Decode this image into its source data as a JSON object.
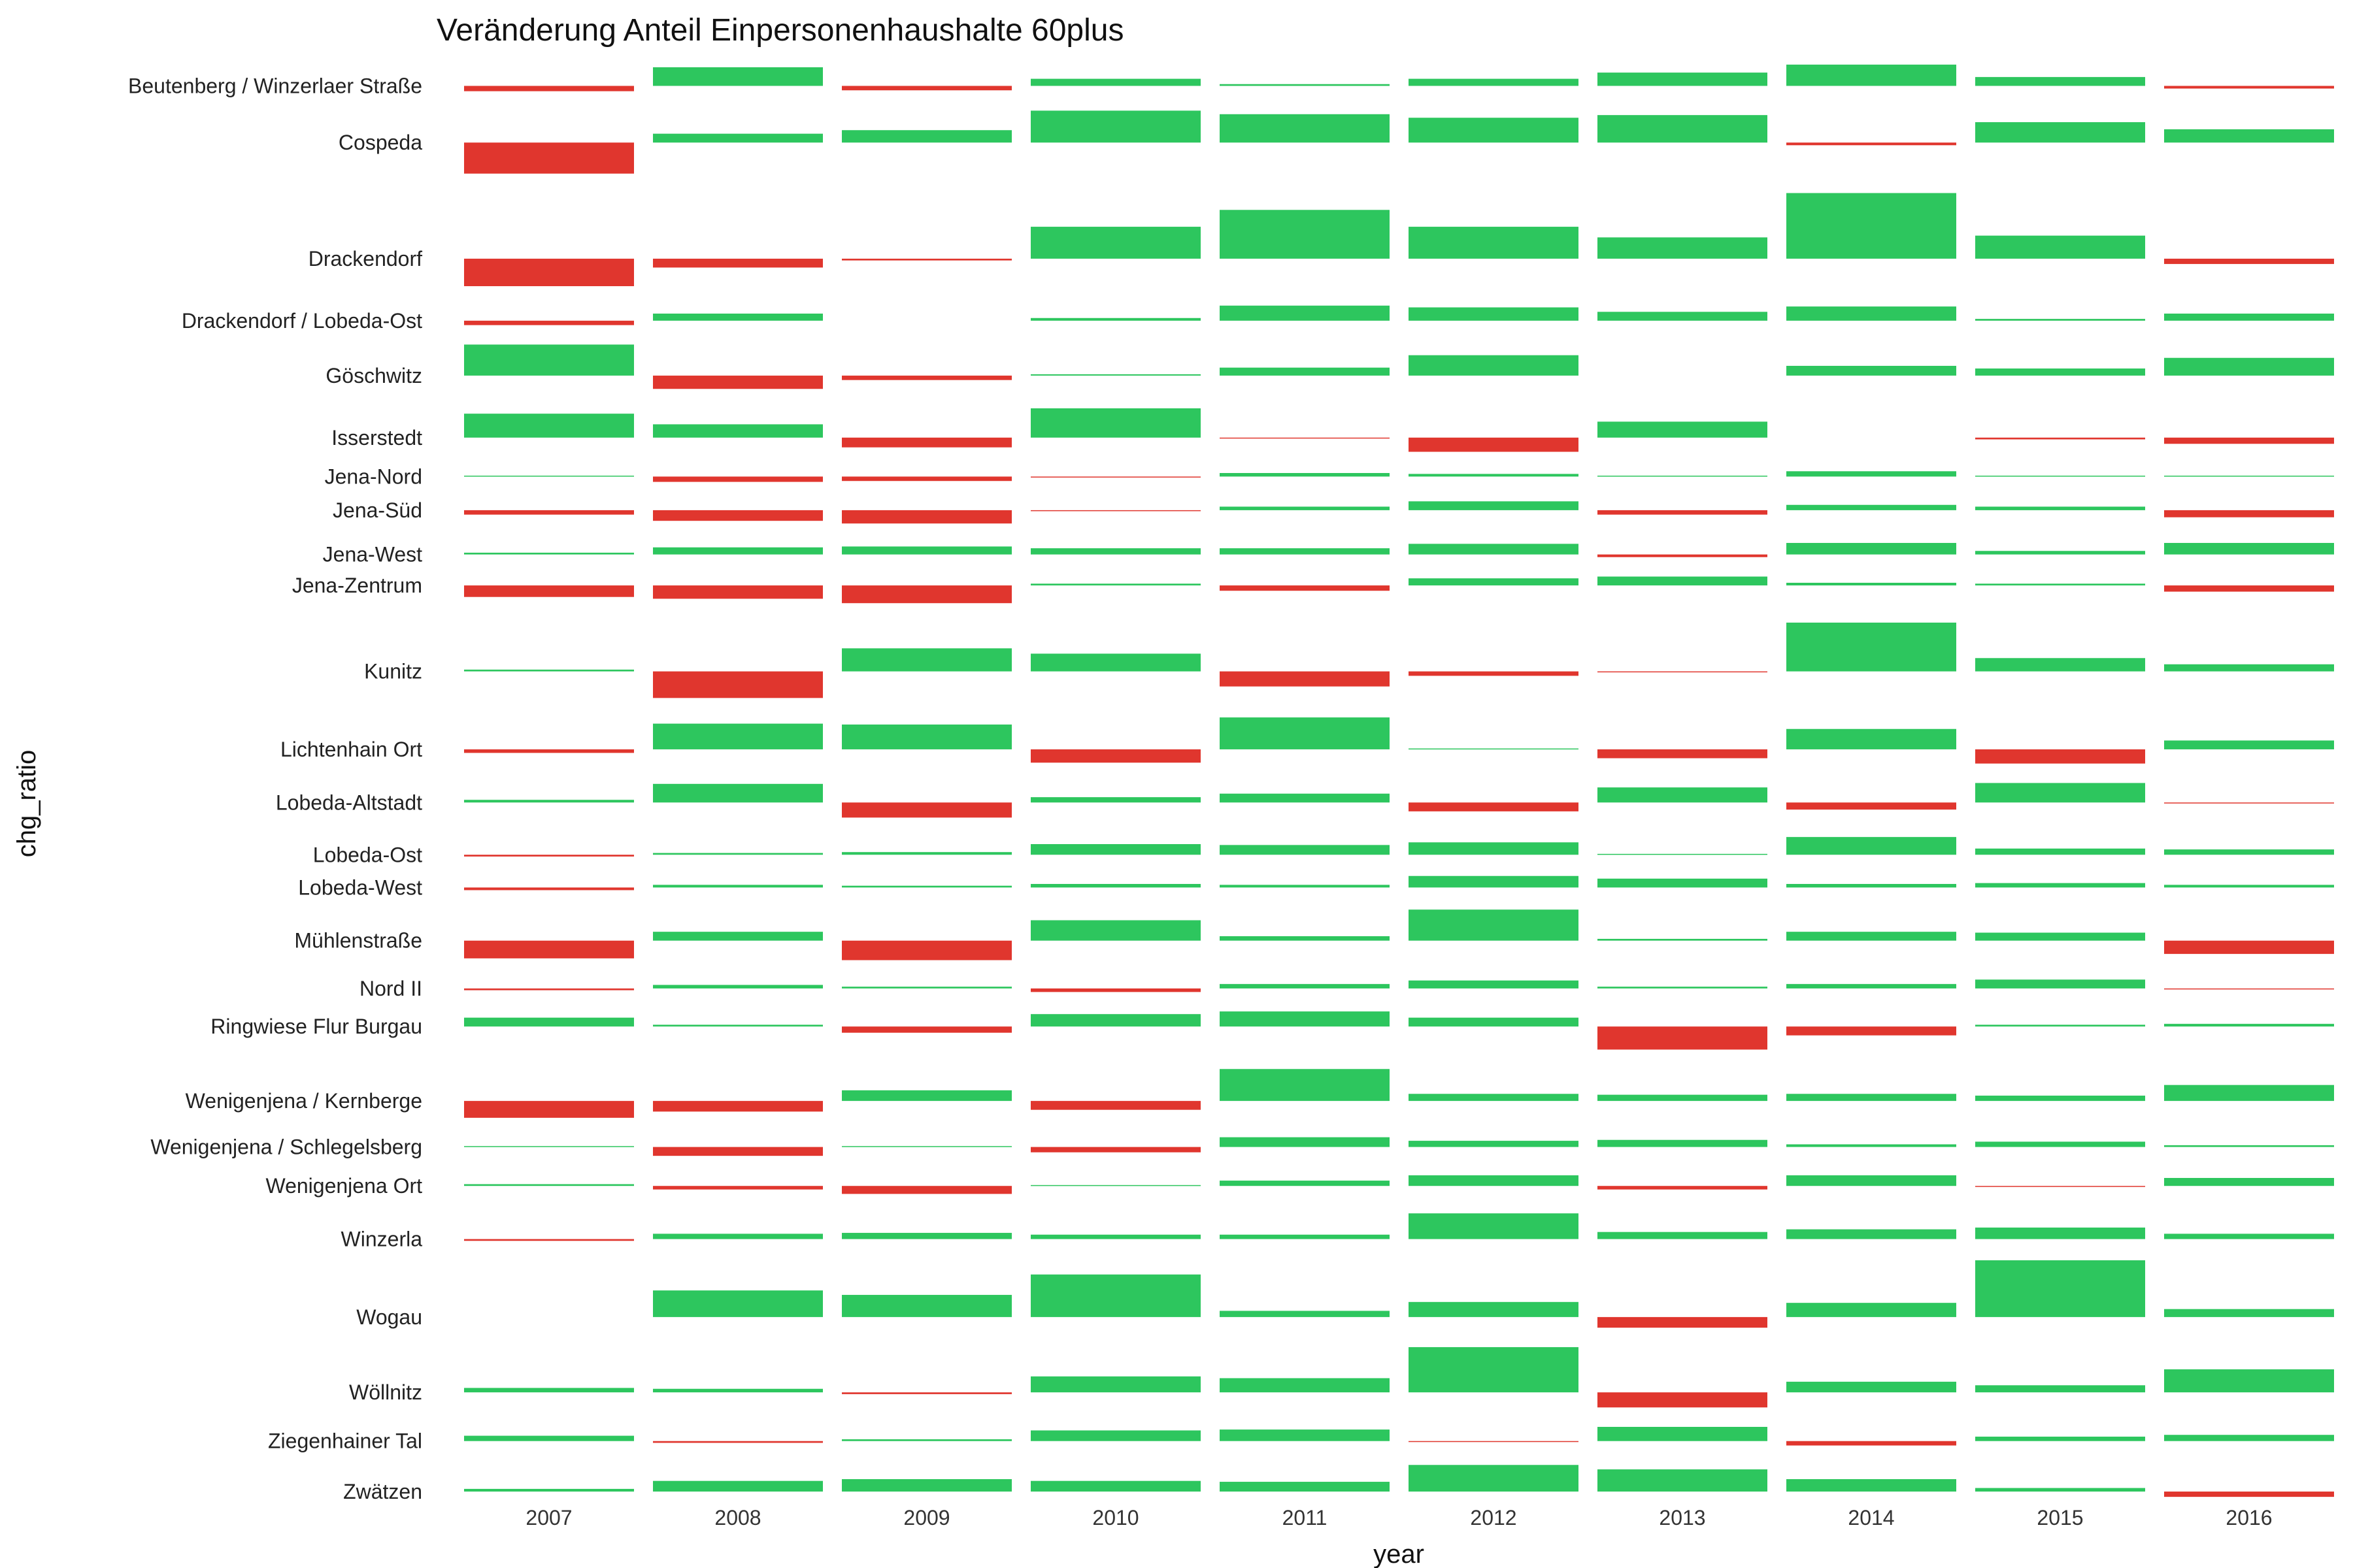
{
  "chart_data": {
    "type": "bar",
    "title": "Veränderung Anteil Einpersonenhaushalte 60plus",
    "xlabel": "year",
    "ylabel": "chg_ratio",
    "years": [
      "2007",
      "2008",
      "2009",
      "2010",
      "2011",
      "2012",
      "2013",
      "2014",
      "2015",
      "2016"
    ],
    "colors": {
      "positive": "#2DC65E",
      "negative": "#E0362E"
    },
    "rows": [
      {
        "name": "Beutenberg / Winzerlaer Straße",
        "values": [
          -0.12,
          0.42,
          -0.1,
          0.16,
          0.04,
          0.16,
          0.3,
          0.48,
          0.2,
          -0.06
        ]
      },
      {
        "name": "Cospeda",
        "values": [
          -0.7,
          0.2,
          0.28,
          0.72,
          0.64,
          0.56,
          0.62,
          -0.06,
          0.46,
          0.3
        ]
      },
      {
        "name": "Drackendorf",
        "values": [
          -0.62,
          -0.2,
          -0.04,
          0.72,
          1.1,
          0.72,
          0.48,
          1.48,
          0.52,
          -0.12
        ]
      },
      {
        "name": "Drackendorf / Lobeda-Ost",
        "values": [
          -0.1,
          0.16,
          0.0,
          0.06,
          0.34,
          0.3,
          0.2,
          0.32,
          0.04,
          0.16
        ]
      },
      {
        "name": "Göschwitz",
        "values": [
          0.7,
          -0.3,
          -0.1,
          0.03,
          0.18,
          0.46,
          0.0,
          0.22,
          0.16,
          0.4
        ]
      },
      {
        "name": "Isserstedt",
        "values": [
          0.54,
          0.3,
          -0.22,
          0.66,
          -0.02,
          -0.32,
          0.36,
          0.0,
          -0.04,
          -0.14
        ]
      },
      {
        "name": "Jena-Nord",
        "values": [
          0.02,
          -0.12,
          -0.1,
          -0.02,
          0.08,
          0.06,
          0.02,
          0.12,
          0.02,
          0.02
        ]
      },
      {
        "name": "Jena-Süd",
        "values": [
          -0.1,
          -0.24,
          -0.3,
          -0.02,
          0.08,
          0.2,
          -0.1,
          0.12,
          0.08,
          -0.16
        ]
      },
      {
        "name": "Jena-West",
        "values": [
          0.04,
          0.16,
          0.18,
          0.14,
          0.14,
          0.24,
          -0.06,
          0.26,
          0.08,
          0.26
        ]
      },
      {
        "name": "Jena-Zentrum",
        "values": [
          -0.26,
          -0.3,
          -0.4,
          0.04,
          -0.12,
          0.16,
          0.2,
          0.06,
          0.04,
          -0.14
        ]
      },
      {
        "name": "Kunitz",
        "values": [
          0.04,
          -0.6,
          0.52,
          0.4,
          -0.34,
          -0.1,
          -0.02,
          1.1,
          0.3,
          0.16
        ]
      },
      {
        "name": "Lichtenhain Ort",
        "values": [
          -0.08,
          0.58,
          0.56,
          -0.3,
          0.72,
          0.02,
          -0.2,
          0.46,
          -0.32,
          0.2
        ]
      },
      {
        "name": "Lobeda-Altstadt",
        "values": [
          0.06,
          0.42,
          -0.34,
          0.12,
          0.2,
          -0.2,
          0.34,
          -0.16,
          0.44,
          -0.02
        ]
      },
      {
        "name": "Lobeda-Ost",
        "values": [
          -0.04,
          0.04,
          0.06,
          0.24,
          0.22,
          0.28,
          0.02,
          0.4,
          0.14,
          0.12
        ]
      },
      {
        "name": "Lobeda-West",
        "values": [
          -0.06,
          0.06,
          0.04,
          0.08,
          0.06,
          0.26,
          0.2,
          0.08,
          0.1,
          0.06
        ]
      },
      {
        "name": "Mühlenstraße",
        "values": [
          -0.4,
          0.2,
          -0.44,
          0.46,
          0.1,
          0.7,
          0.04,
          0.2,
          0.18,
          -0.3
        ]
      },
      {
        "name": "Nord II",
        "values": [
          -0.04,
          0.08,
          0.04,
          -0.08,
          0.1,
          0.18,
          0.04,
          0.1,
          0.2,
          -0.02
        ]
      },
      {
        "name": "Ringwiese Flur Burgau",
        "values": [
          0.2,
          0.04,
          -0.14,
          0.28,
          0.34,
          0.2,
          -0.52,
          -0.2,
          0.04,
          0.06
        ]
      },
      {
        "name": "Wenigenjena / Kernberge",
        "values": [
          -0.38,
          -0.24,
          0.24,
          -0.2,
          0.72,
          0.16,
          0.14,
          0.16,
          0.12,
          0.36
        ]
      },
      {
        "name": "Wenigenjena / Schlegelsberg",
        "values": [
          0.02,
          -0.2,
          0.02,
          -0.12,
          0.22,
          0.14,
          0.16,
          0.06,
          0.12,
          0.04
        ]
      },
      {
        "name": "Wenigenjena Ort",
        "values": [
          0.04,
          -0.08,
          -0.18,
          0.02,
          0.12,
          0.24,
          -0.08,
          0.24,
          -0.02,
          0.18
        ]
      },
      {
        "name": "Winzerla",
        "values": [
          -0.04,
          0.12,
          0.14,
          0.1,
          0.1,
          0.58,
          0.16,
          0.22,
          0.26,
          0.12
        ]
      },
      {
        "name": "Wogau",
        "values": [
          0.0,
          0.6,
          0.5,
          0.96,
          0.14,
          0.34,
          -0.24,
          0.32,
          1.28,
          0.18
        ]
      },
      {
        "name": "Wöllnitz",
        "values": [
          0.1,
          0.08,
          -0.04,
          0.36,
          0.32,
          1.02,
          -0.34,
          0.24,
          0.16,
          0.52
        ]
      },
      {
        "name": "Ziegenhainer Tal",
        "values": [
          0.12,
          -0.04,
          0.04,
          0.24,
          0.26,
          -0.02,
          0.32,
          -0.1,
          0.1,
          0.14
        ]
      },
      {
        "name": "Zwätzen",
        "values": [
          0.06,
          0.24,
          0.28,
          0.24,
          0.22,
          0.6,
          0.5,
          0.28,
          0.08,
          -0.12
        ]
      }
    ]
  }
}
